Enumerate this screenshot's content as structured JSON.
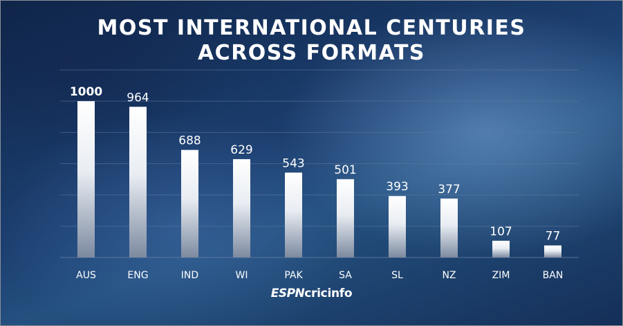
{
  "chart_data": {
    "type": "bar",
    "title": "MOST INTERNATIONAL CENTURIES ACROSS FORMATS",
    "title_lines": [
      "MOST INTERNATIONAL CENTURIES",
      "ACROSS FORMATS"
    ],
    "categories": [
      "AUS",
      "ENG",
      "IND",
      "WI",
      "PAK",
      "SA",
      "SL",
      "NZ",
      "ZIM",
      "BAN"
    ],
    "values": [
      1000,
      964,
      688,
      629,
      543,
      501,
      393,
      377,
      107,
      77
    ],
    "value_labels": [
      "1000",
      "964",
      "688",
      "629",
      "543",
      "501",
      "393",
      "377",
      "107",
      "77"
    ],
    "ylim": [
      0,
      1200
    ],
    "grid": true,
    "legend": "none",
    "colors": {
      "bar_top": "#ffffff",
      "bar_bottom": "#7c8aa0",
      "grid": "#5f7aa0"
    }
  },
  "branding": {
    "espn": "ESPN",
    "cricinfo": "cricinfo"
  }
}
